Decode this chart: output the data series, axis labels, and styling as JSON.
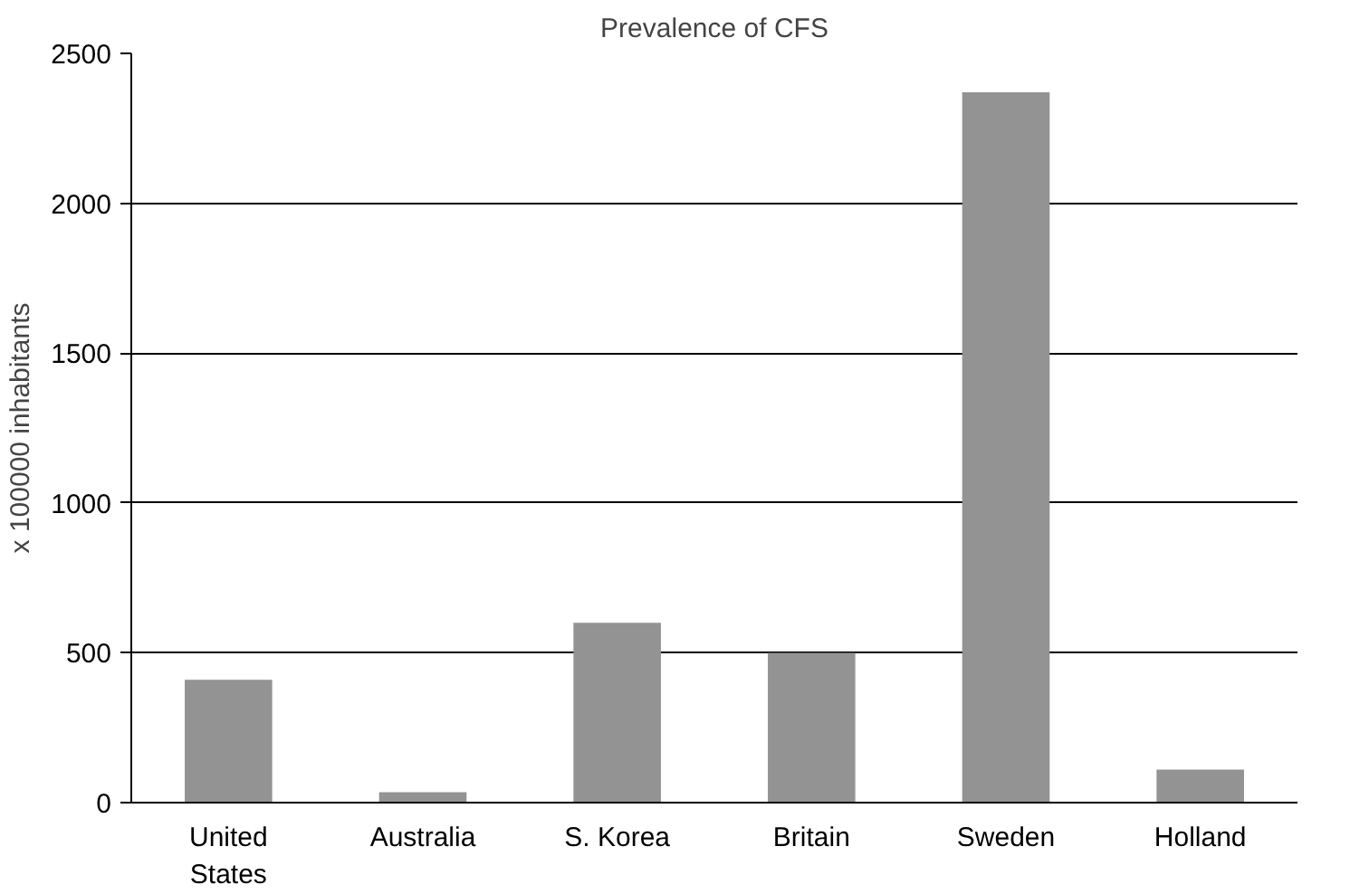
{
  "chart_data": {
    "type": "bar",
    "title": "Prevalence of CFS",
    "ylabel": "x 100000 inhabitants",
    "categories": [
      "United States",
      "Australia",
      "S. Korea",
      "Britain",
      "Sweden",
      "Holland"
    ],
    "values": [
      410,
      35,
      600,
      500,
      2370,
      110
    ],
    "color": "#939393",
    "ylim": [
      0,
      2500
    ],
    "yticks": [
      0,
      500,
      1000,
      1500,
      2000,
      2500
    ],
    "grid": "y"
  }
}
